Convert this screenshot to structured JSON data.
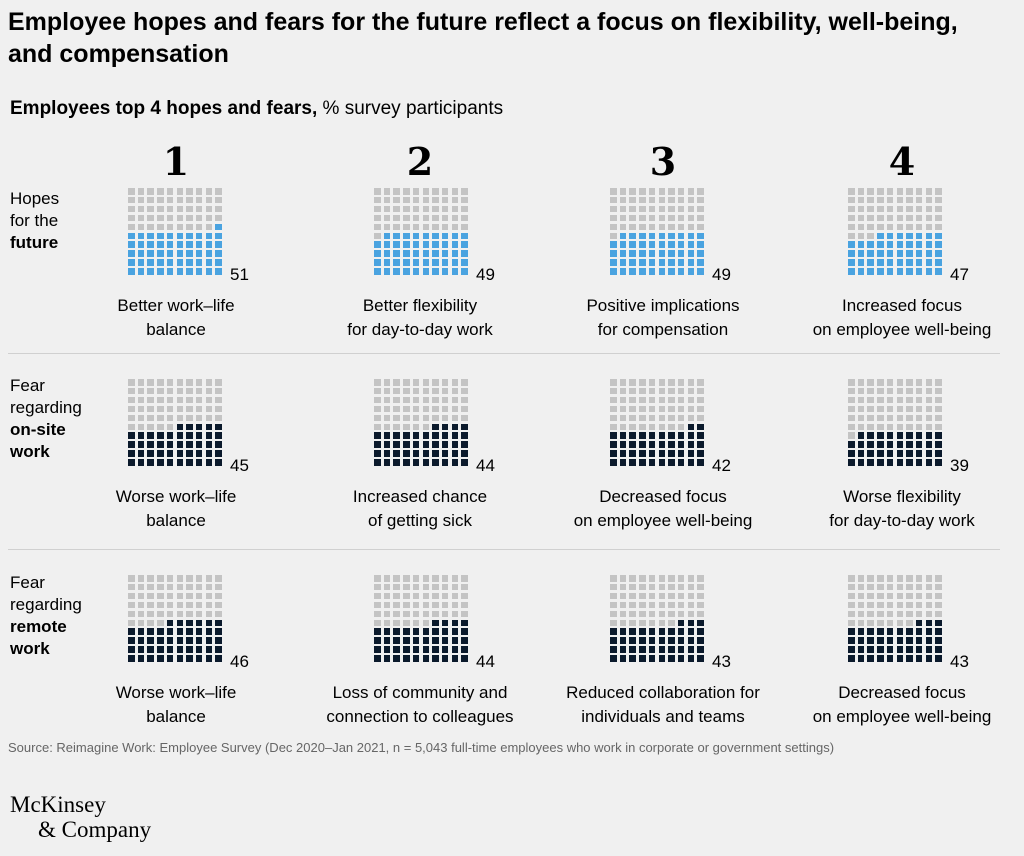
{
  "title": "Employee hopes and fears for the future reflect a focus on flexibility, well-being, and compensation",
  "subtitle_bold": "Employees top 4 hopes and fears,",
  "subtitle_rest": " % survey participants",
  "ranks": [
    "1",
    "2",
    "3",
    "4"
  ],
  "source": "Source: Reimagine Work: Employee Survey (Dec 2020–Jan 2021, n = 5,043 full-time employees who work in corporate or government settings)",
  "logo": {
    "line1": "McKinsey",
    "line2": "& Company"
  },
  "colors": {
    "background": "#f0f0f0",
    "empty": "#c4c4c4",
    "hope": "#4aa3e0",
    "fear": "#0b1a2c"
  },
  "chart_data": {
    "type": "waffle",
    "grid": {
      "rows": 10,
      "cols": 10
    },
    "rows": [
      {
        "label_lines": [
          [
            "Hopes",
            false
          ],
          [
            "for the",
            false
          ],
          [
            "future",
            true
          ]
        ],
        "fill": "hope",
        "items": [
          {
            "value": 51,
            "caption": [
              "Better work–life",
              "balance"
            ]
          },
          {
            "value": 49,
            "caption": [
              "Better flexibility",
              "for day-to-day work"
            ]
          },
          {
            "value": 49,
            "caption": [
              "Positive implications",
              "for compensation"
            ]
          },
          {
            "value": 47,
            "caption": [
              "Increased focus",
              "on employee well-being"
            ]
          }
        ]
      },
      {
        "label_lines": [
          [
            "Fear",
            false
          ],
          [
            "regarding",
            false
          ],
          [
            "on-site",
            true
          ],
          [
            "work",
            true
          ]
        ],
        "fill": "fear",
        "items": [
          {
            "value": 45,
            "caption": [
              "Worse work–life",
              "balance"
            ]
          },
          {
            "value": 44,
            "caption": [
              "Increased chance",
              "of getting sick"
            ]
          },
          {
            "value": 42,
            "caption": [
              "Decreased focus",
              "on employee well-being"
            ]
          },
          {
            "value": 39,
            "caption": [
              "Worse flexibility",
              "for day-to-day work"
            ]
          }
        ]
      },
      {
        "label_lines": [
          [
            "Fear",
            false
          ],
          [
            "regarding",
            false
          ],
          [
            "remote",
            true
          ],
          [
            "work",
            true
          ]
        ],
        "fill": "fear",
        "items": [
          {
            "value": 46,
            "caption": [
              "Worse work–life",
              "balance"
            ]
          },
          {
            "value": 44,
            "caption": [
              "Loss of community and",
              "connection to colleagues"
            ]
          },
          {
            "value": 43,
            "caption": [
              "Reduced collaboration for",
              "individuals and teams"
            ]
          },
          {
            "value": 43,
            "caption": [
              "Decreased focus",
              "on employee well-being"
            ]
          }
        ]
      }
    ]
  }
}
